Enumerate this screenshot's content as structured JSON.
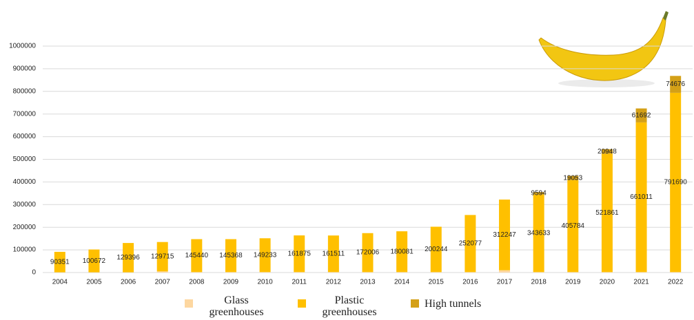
{
  "chart_data": {
    "type": "stacked_bar",
    "categories": [
      "2004",
      "2005",
      "2006",
      "2007",
      "2008",
      "2009",
      "2010",
      "2011",
      "2012",
      "2013",
      "2014",
      "2015",
      "2016",
      "2017",
      "2018",
      "2019",
      "2020",
      "2021",
      "2022"
    ],
    "series": [
      {
        "name": "Glass greenhouses",
        "color": "#fdd7a0",
        "data_labels": false,
        "values": [
          1000,
          1000,
          1000,
          5000,
          2000,
          2000,
          2000,
          2000,
          2000,
          2000,
          2000,
          2000,
          2000,
          10000,
          2000,
          2000,
          2000,
          2000,
          2000
        ]
      },
      {
        "name": "Plastic greenhouses",
        "color": "#ffc000",
        "data_labels": true,
        "values": [
          90351,
          100672,
          129396,
          129715,
          145440,
          145368,
          149233,
          161875,
          161511,
          172006,
          180081,
          200244,
          252077,
          312247,
          343633,
          405784,
          521861,
          661011,
          791690
        ]
      },
      {
        "name": "High tunnels",
        "color": "#d4a017",
        "data_labels": true,
        "values": [
          null,
          null,
          null,
          null,
          null,
          null,
          null,
          null,
          null,
          null,
          null,
          null,
          null,
          null,
          9594,
          19053,
          20948,
          61692,
          74676
        ]
      }
    ],
    "ylim": [
      0,
      1000000
    ],
    "yticks": [
      0,
      100000,
      200000,
      300000,
      400000,
      500000,
      600000,
      700000,
      800000,
      900000,
      1000000
    ],
    "grid": true
  }
}
